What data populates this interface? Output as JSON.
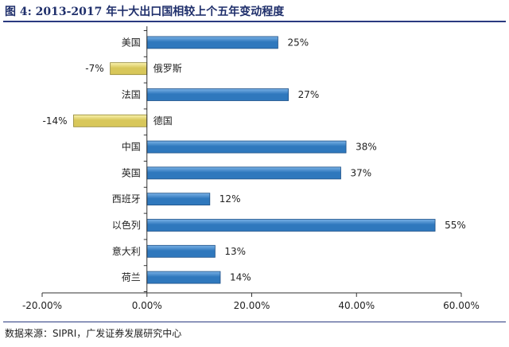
{
  "header": {
    "title": "图 4:  2013-2017 年十大出口国相较上个五年变动程度"
  },
  "footer": {
    "source": "数据来源：SIPRI，广发证券发展研究中心"
  },
  "colors": {
    "positive_bar": "#2f78bd",
    "positive_bar_light": "#7ab2e6",
    "negative_bar": "#d8c75a",
    "negative_bar_light": "#fbf3b0",
    "axis": "#333333",
    "title": "#1f2f6b"
  },
  "chart_data": {
    "type": "bar",
    "orientation": "horizontal",
    "categories": [
      "美国",
      "俄罗斯",
      "法国",
      "德国",
      "中国",
      "英国",
      "西班牙",
      "以色列",
      "意大利",
      "荷兰"
    ],
    "values": [
      25,
      -7,
      27,
      -14,
      38,
      37,
      12,
      55,
      13,
      14
    ],
    "value_labels": [
      "25%",
      "-7%",
      "27%",
      "-14%",
      "38%",
      "37%",
      "12%",
      "55%",
      "13%",
      "14%"
    ],
    "xlim": [
      -20,
      60
    ],
    "xticks": [
      -20,
      0,
      20,
      40,
      60
    ],
    "xtick_labels": [
      "-20.00%",
      "0.00%",
      "20.00%",
      "40.00%",
      "60.00%"
    ],
    "grid": false,
    "legend": "none"
  }
}
